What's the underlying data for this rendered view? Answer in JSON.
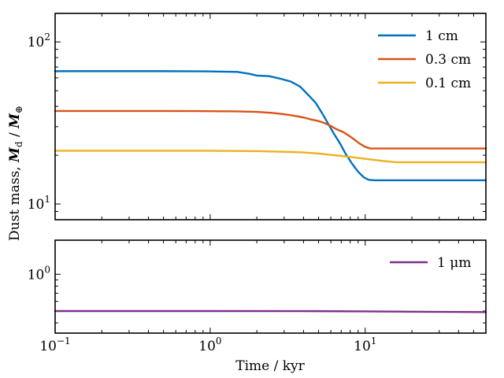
{
  "chart_data": [
    {
      "type": "line",
      "title": "",
      "xscale": "log",
      "yscale": "log",
      "xlim": [
        0.1,
        60
      ],
      "ylim": [
        8,
        150
      ],
      "ylabel_parts": {
        "lead": "Dust mass, ",
        "m1": "M",
        "sub1": "d",
        "sep": " / ",
        "m2": "M",
        "sub2": "⊕"
      },
      "xlabel": "",
      "xticks": [
        {
          "value": 0.1,
          "base": "10",
          "exp": "−1"
        },
        {
          "value": 1,
          "base": "10",
          "exp": "0"
        },
        {
          "value": 10,
          "base": "10",
          "exp": "1"
        }
      ],
      "yticks": [
        {
          "value": 10,
          "base": "10",
          "exp": "1"
        },
        {
          "value": 100,
          "base": "10",
          "exp": "2"
        }
      ],
      "legend_position": "top-right",
      "series": [
        {
          "name": "1 cm",
          "color": "#0072BD",
          "points": [
            [
              0.1,
              66
            ],
            [
              0.5,
              66
            ],
            [
              1.0,
              65.8
            ],
            [
              1.5,
              65.3
            ],
            [
              1.8,
              63.5
            ],
            [
              2.0,
              62.0
            ],
            [
              2.4,
              61.5
            ],
            [
              2.8,
              59.5
            ],
            [
              3.3,
              57
            ],
            [
              3.8,
              53
            ],
            [
              4.3,
              47
            ],
            [
              4.8,
              42
            ],
            [
              5.3,
              36
            ],
            [
              5.8,
              31
            ],
            [
              6.3,
              27
            ],
            [
              6.9,
              23.5
            ],
            [
              7.5,
              20.3
            ],
            [
              8.2,
              17.8
            ],
            [
              9.0,
              15.8
            ],
            [
              9.8,
              14.6
            ],
            [
              10.5,
              14.1
            ],
            [
              11.5,
              14.0
            ],
            [
              20,
              14.0
            ],
            [
              60,
              14.0
            ]
          ]
        },
        {
          "name": "0.3 cm",
          "color": "#D95319",
          "points": [
            [
              0.1,
              37.5
            ],
            [
              0.5,
              37.5
            ],
            [
              1.0,
              37.4
            ],
            [
              1.5,
              37.3
            ],
            [
              2.0,
              37
            ],
            [
              2.5,
              36.5
            ],
            [
              3.0,
              35.8
            ],
            [
              3.5,
              35
            ],
            [
              4.0,
              34.2
            ],
            [
              4.5,
              33.2
            ],
            [
              5.0,
              32.5
            ],
            [
              5.5,
              31.5
            ],
            [
              6.0,
              30.3
            ],
            [
              6.5,
              29
            ],
            [
              7.2,
              27.8
            ],
            [
              7.8,
              26.5
            ],
            [
              8.5,
              25
            ],
            [
              9.2,
              23.6
            ],
            [
              10.0,
              22.5
            ],
            [
              10.8,
              22.0
            ],
            [
              12,
              22.0
            ],
            [
              20,
              22.0
            ],
            [
              60,
              22.0
            ]
          ]
        },
        {
          "name": "0.1 cm",
          "color": "#EDB120",
          "points": [
            [
              0.1,
              21.3
            ],
            [
              0.5,
              21.3
            ],
            [
              1.0,
              21.3
            ],
            [
              2.0,
              21.2
            ],
            [
              3.0,
              21.0
            ],
            [
              4.0,
              20.8
            ],
            [
              5.0,
              20.5
            ],
            [
              6.0,
              20.1
            ],
            [
              7.0,
              19.8
            ],
            [
              8.0,
              19.5
            ],
            [
              10.0,
              19.0
            ],
            [
              12.0,
              18.6
            ],
            [
              14.0,
              18.3
            ],
            [
              16.0,
              18.1
            ],
            [
              20,
              18.1
            ],
            [
              60,
              18.1
            ]
          ]
        }
      ]
    },
    {
      "type": "line",
      "title": "",
      "xscale": "log",
      "yscale": "log",
      "xlim": [
        0.1,
        60
      ],
      "ylim": [
        0.33,
        1.9
      ],
      "xlabel": "Time / kyr",
      "ylabel": "",
      "xticks": [
        {
          "value": 0.1,
          "base": "10",
          "exp": "−1"
        },
        {
          "value": 1,
          "base": "10",
          "exp": "0"
        },
        {
          "value": 10,
          "base": "10",
          "exp": "1"
        }
      ],
      "yticks": [
        {
          "value": 1,
          "base": "10",
          "exp": "0"
        }
      ],
      "legend_position": "top-right",
      "series": [
        {
          "name": "1 μm",
          "color": "#7E2F8E",
          "points": [
            [
              0.1,
              0.5
            ],
            [
              1,
              0.5
            ],
            [
              5,
              0.499
            ],
            [
              10,
              0.497
            ],
            [
              20,
              0.494
            ],
            [
              60,
              0.49
            ]
          ]
        }
      ]
    }
  ]
}
